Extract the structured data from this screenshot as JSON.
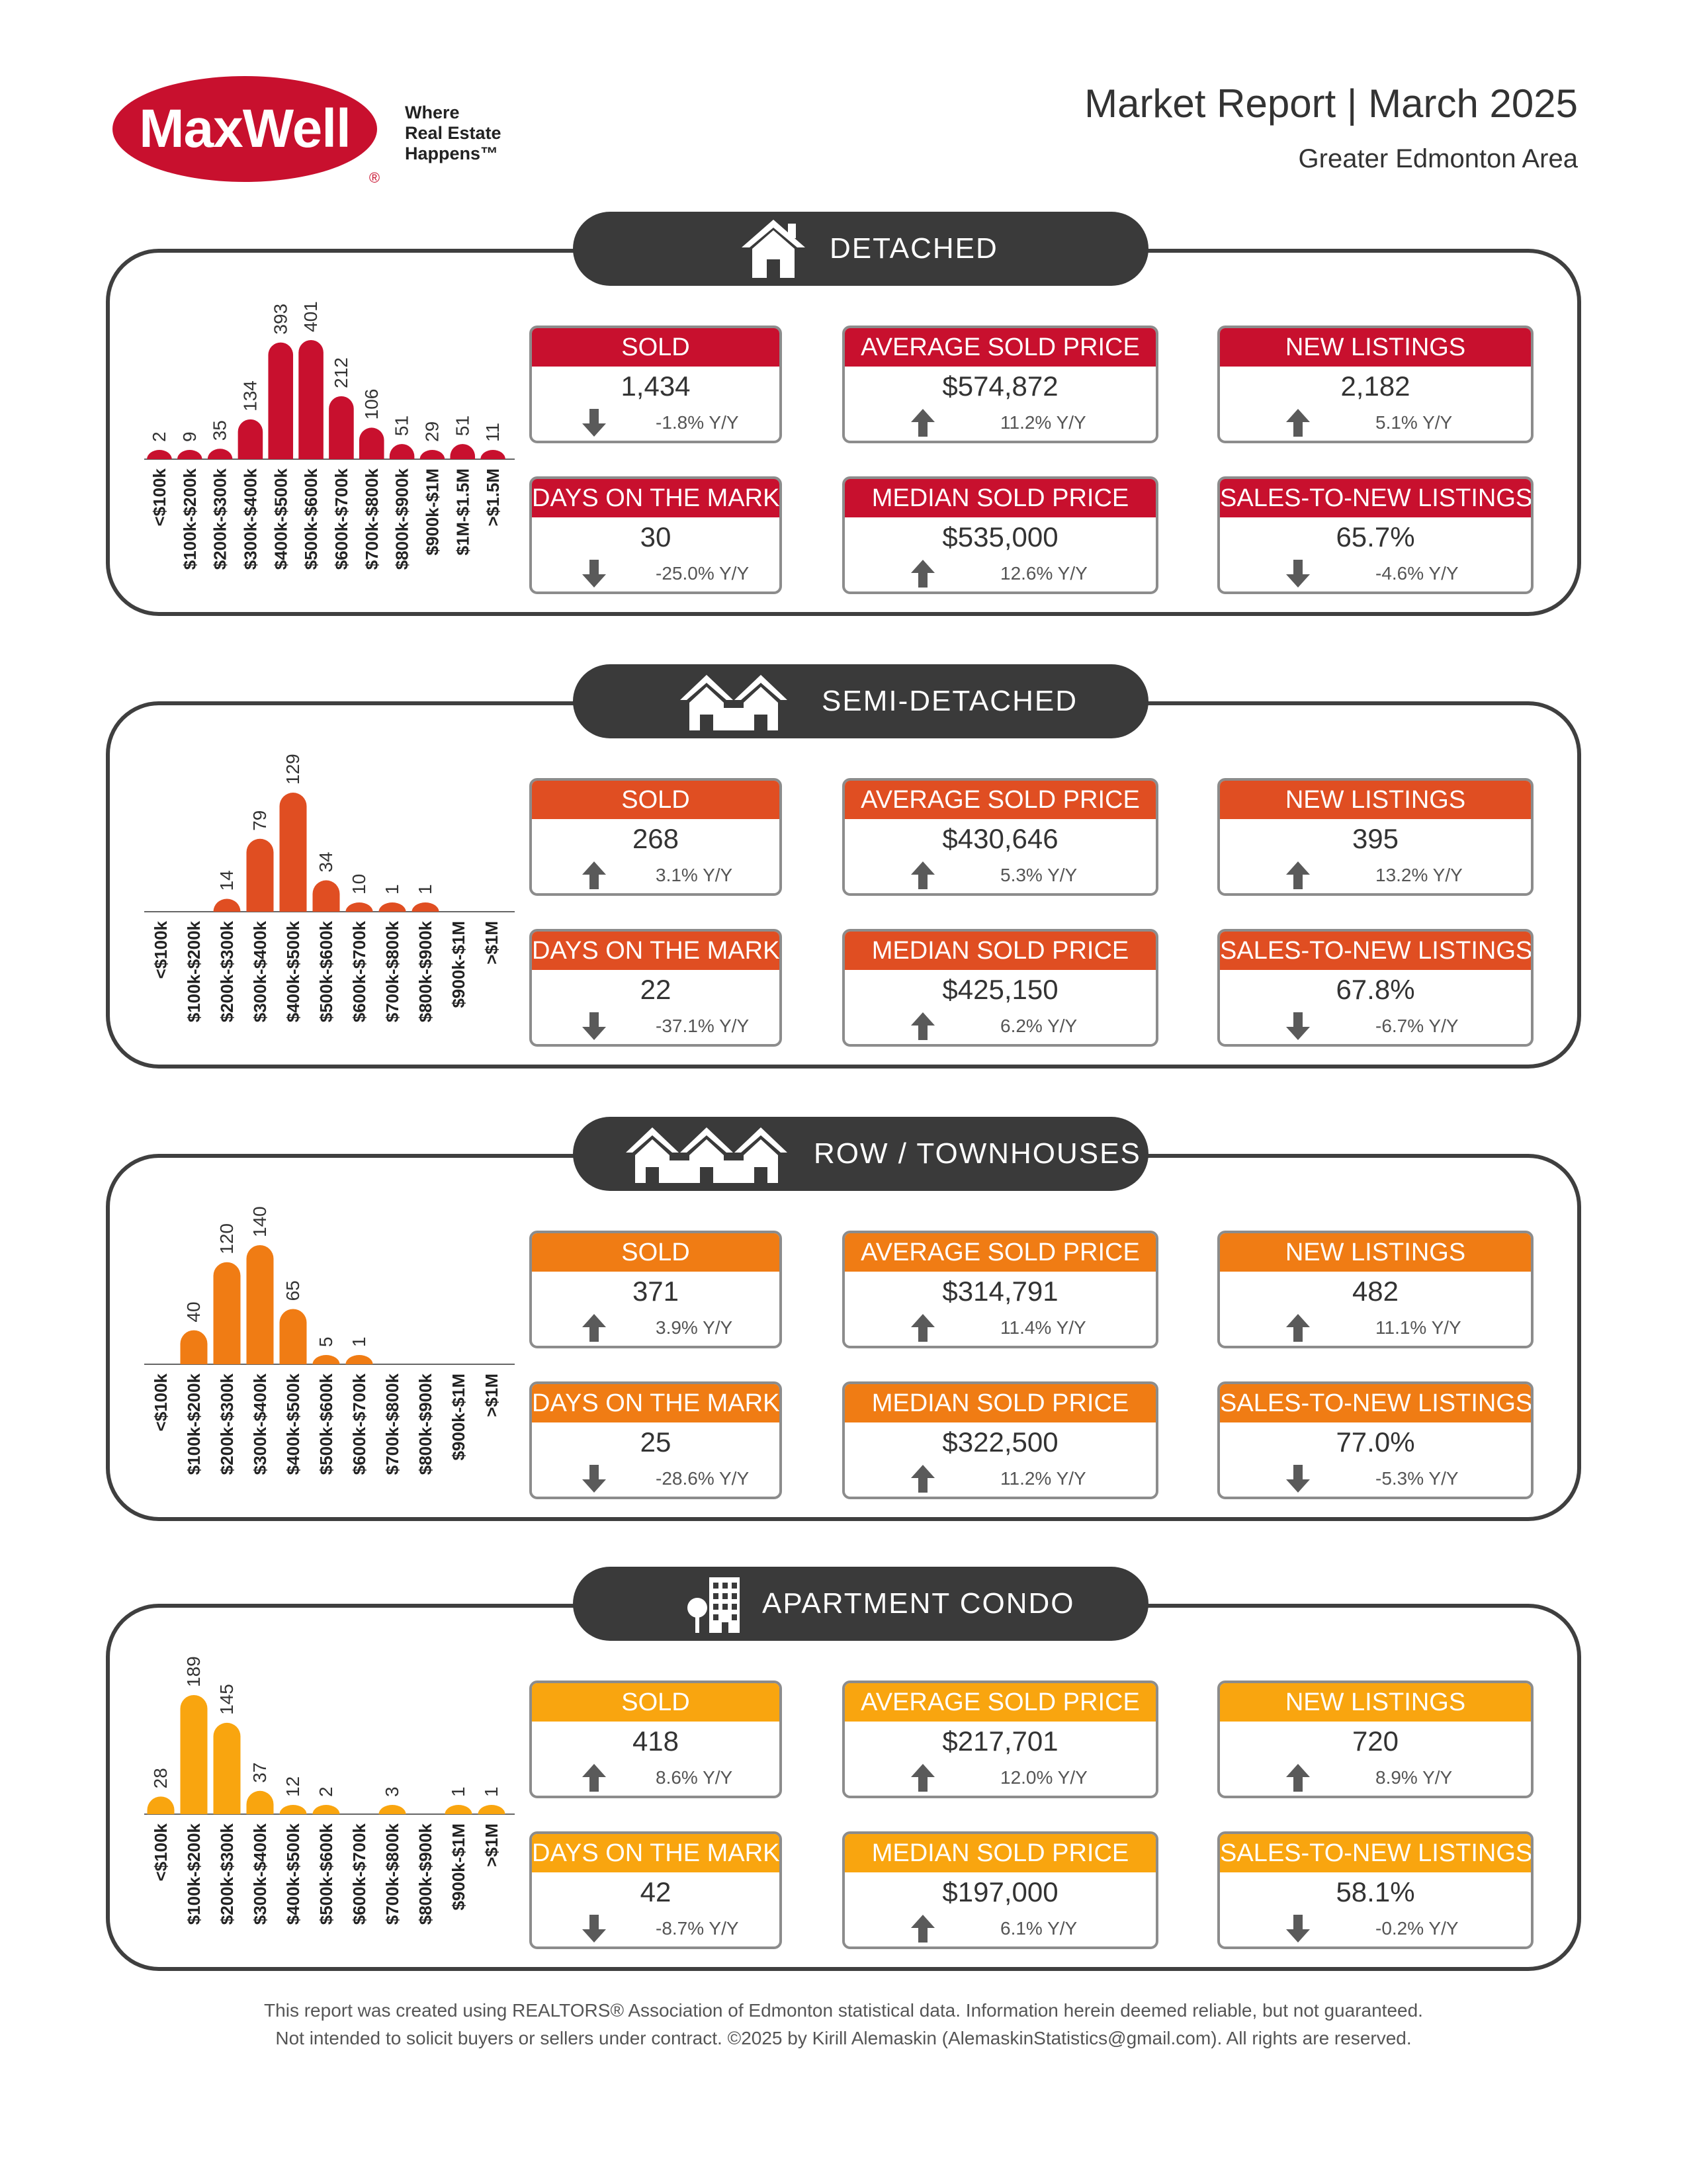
{
  "header": {
    "logo_text": "MaxWell",
    "logo_registered": "®",
    "tagline": [
      "Where",
      "Real Estate",
      "Happens™"
    ],
    "title": "Market Report | March 2025",
    "area": "Greater Edmonton Area"
  },
  "sections": [
    {
      "label": "DETACHED",
      "icon": "house-icon",
      "color": "#c8102e",
      "chart_data": {
        "type": "bar",
        "categories": [
          "<$100k",
          "$100k-$200k",
          "$200k-$300k",
          "$300k-$400k",
          "$400k-$500k",
          "$500k-$600k",
          "$600k-$700k",
          "$700k-$800k",
          "$800k-$900k",
          "$900k-$1M",
          "$1M-$1.5M",
          ">$1.5M"
        ],
        "values": [
          2,
          9,
          35,
          134,
          393,
          401,
          212,
          106,
          51,
          29,
          51,
          11
        ]
      },
      "stats": [
        {
          "label": "SOLD",
          "value": "1,434",
          "change": "-1.8% Y/Y",
          "direction": "down"
        },
        {
          "label": "AVERAGE SOLD PRICE",
          "value": "$574,872",
          "change": "11.2% Y/Y",
          "direction": "up"
        },
        {
          "label": "NEW LISTINGS",
          "value": "2,182",
          "change": "5.1% Y/Y",
          "direction": "up"
        },
        {
          "label": "DAYS ON THE MARKET",
          "value": "30",
          "change": "-25.0% Y/Y",
          "direction": "down"
        },
        {
          "label": "MEDIAN SOLD PRICE",
          "value": "$535,000",
          "change": "12.6% Y/Y",
          "direction": "up"
        },
        {
          "label": "SALES-TO-NEW LISTINGS",
          "value": "65.7%",
          "change": "-4.6% Y/Y",
          "direction": "down"
        }
      ]
    },
    {
      "label": "SEMI-DETACHED",
      "icon": "semi-detached-icon",
      "color": "#e04e22",
      "chart_data": {
        "type": "bar",
        "categories": [
          "<$100k",
          "$100k-$200k",
          "$200k-$300k",
          "$300k-$400k",
          "$400k-$500k",
          "$500k-$600k",
          "$600k-$700k",
          "$700k-$800k",
          "$800k-$900k",
          "$900k-$1M",
          ">$1M"
        ],
        "values": [
          0,
          0,
          14,
          79,
          129,
          34,
          10,
          1,
          1,
          0,
          0
        ]
      },
      "stats": [
        {
          "label": "SOLD",
          "value": "268",
          "change": "3.1% Y/Y",
          "direction": "up"
        },
        {
          "label": "AVERAGE SOLD PRICE",
          "value": "$430,646",
          "change": "5.3% Y/Y",
          "direction": "up"
        },
        {
          "label": "NEW LISTINGS",
          "value": "395",
          "change": "13.2% Y/Y",
          "direction": "up"
        },
        {
          "label": "DAYS ON THE MARKET",
          "value": "22",
          "change": "-37.1% Y/Y",
          "direction": "down"
        },
        {
          "label": "MEDIAN SOLD PRICE",
          "value": "$425,150",
          "change": "6.2% Y/Y",
          "direction": "up"
        },
        {
          "label": "SALES-TO-NEW LISTINGS",
          "value": "67.8%",
          "change": "-6.7% Y/Y",
          "direction": "down"
        }
      ]
    },
    {
      "label": "ROW / TOWNHOUSES",
      "icon": "townhouses-icon",
      "color": "#f07c14",
      "chart_data": {
        "type": "bar",
        "categories": [
          "<$100k",
          "$100k-$200k",
          "$200k-$300k",
          "$300k-$400k",
          "$400k-$500k",
          "$500k-$600k",
          "$600k-$700k",
          "$700k-$800k",
          "$800k-$900k",
          "$900k-$1M",
          ">$1M"
        ],
        "values": [
          0,
          40,
          120,
          140,
          65,
          5,
          1,
          0,
          0,
          0,
          0
        ]
      },
      "stats": [
        {
          "label": "SOLD",
          "value": "371",
          "change": "3.9% Y/Y",
          "direction": "up"
        },
        {
          "label": "AVERAGE SOLD PRICE",
          "value": "$314,791",
          "change": "11.4% Y/Y",
          "direction": "up"
        },
        {
          "label": "NEW LISTINGS",
          "value": "482",
          "change": "11.1% Y/Y",
          "direction": "up"
        },
        {
          "label": "DAYS ON THE MARKET",
          "value": "25",
          "change": "-28.6% Y/Y",
          "direction": "down"
        },
        {
          "label": "MEDIAN SOLD PRICE",
          "value": "$322,500",
          "change": "11.2% Y/Y",
          "direction": "up"
        },
        {
          "label": "SALES-TO-NEW LISTINGS",
          "value": "77.0%",
          "change": "-5.3% Y/Y",
          "direction": "down"
        }
      ]
    },
    {
      "label": "APARTMENT CONDO",
      "icon": "apartment-icon",
      "color": "#f9a50f",
      "chart_data": {
        "type": "bar",
        "categories": [
          "<$100k",
          "$100k-$200k",
          "$200k-$300k",
          "$300k-$400k",
          "$400k-$500k",
          "$500k-$600k",
          "$600k-$700k",
          "$700k-$800k",
          "$800k-$900k",
          "$900k-$1M",
          ">$1M"
        ],
        "values": [
          28,
          189,
          145,
          37,
          12,
          2,
          0,
          3,
          0,
          1,
          1
        ]
      },
      "stats": [
        {
          "label": "SOLD",
          "value": "418",
          "change": "8.6% Y/Y",
          "direction": "up"
        },
        {
          "label": "AVERAGE SOLD PRICE",
          "value": "$217,701",
          "change": "12.0% Y/Y",
          "direction": "up"
        },
        {
          "label": "NEW LISTINGS",
          "value": "720",
          "change": "8.9% Y/Y",
          "direction": "up"
        },
        {
          "label": "DAYS ON THE MARKET",
          "value": "42",
          "change": "-8.7% Y/Y",
          "direction": "down"
        },
        {
          "label": "MEDIAN SOLD PRICE",
          "value": "$197,000",
          "change": "6.1% Y/Y",
          "direction": "up"
        },
        {
          "label": "SALES-TO-NEW LISTINGS",
          "value": "58.1%",
          "change": "-0.2% Y/Y",
          "direction": "down"
        }
      ]
    }
  ],
  "footer": {
    "line1": "This report was created using REALTORS® Association of Edmonton statistical data. Information herein deemed reliable, but not guaranteed.",
    "line2": "Not intended to solicit buyers or sellers under contract. ©2025 by Kirill Alemaskin (AlemaskinStatistics@gmail.com). All rights are reserved."
  }
}
